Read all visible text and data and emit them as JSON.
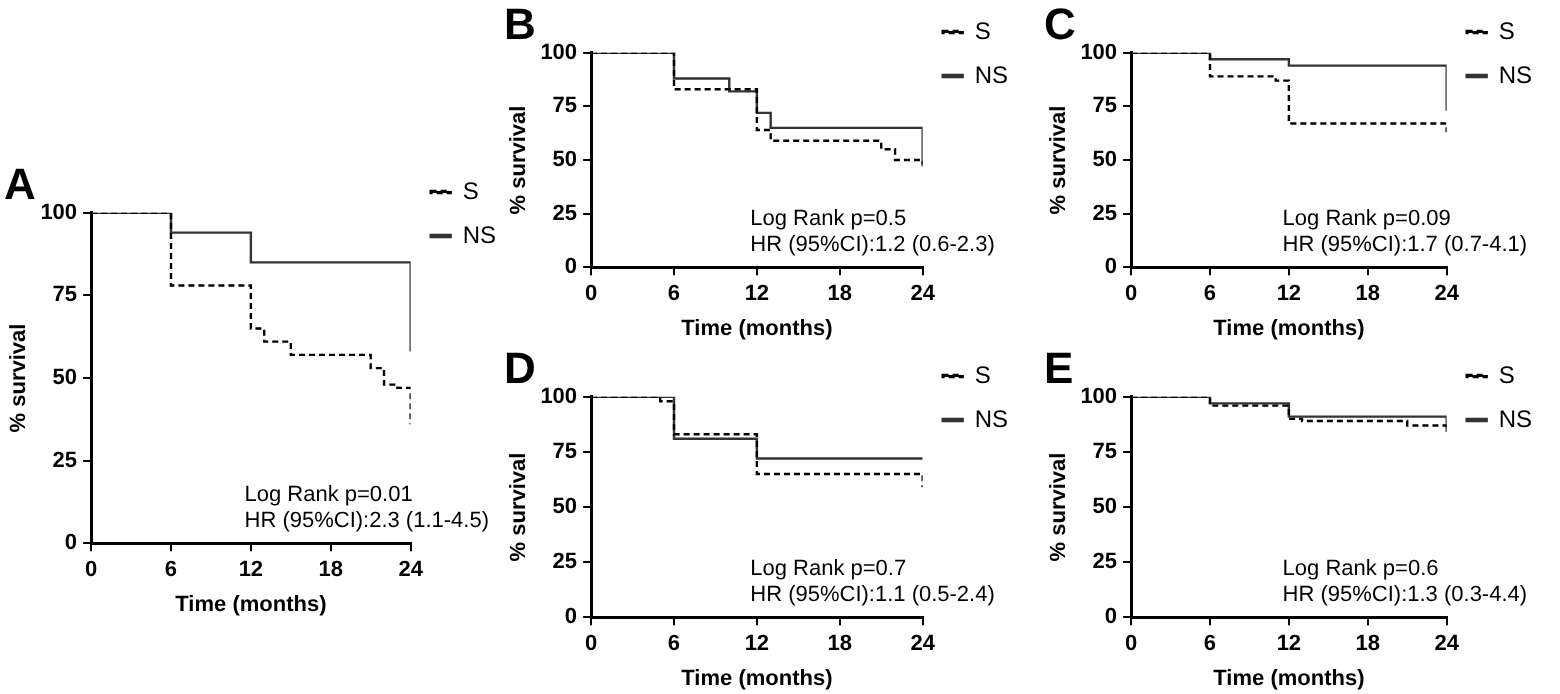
{
  "chart_data": [
    {
      "type": "step",
      "title": "A",
      "xlabel": "Time (months)",
      "ylabel": "% survival",
      "xlim": [
        0,
        24
      ],
      "xticks": [
        0,
        6,
        12,
        18,
        24
      ],
      "ylim": [
        0,
        100
      ],
      "yticks": [
        0,
        25,
        50,
        75,
        100
      ],
      "legend": "right",
      "annotations": [
        "Log Rank p=0.01",
        "HR (95%CI):2.3 (1.1-4.5)"
      ],
      "series": [
        {
          "name": "S",
          "color": "#000000",
          "line_style": "dashed",
          "x": [
            0,
            6,
            12,
            13,
            15,
            21,
            22,
            23,
            24,
            24
          ],
          "values": [
            100,
            78,
            65,
            61,
            57,
            53,
            48,
            47,
            46,
            36
          ]
        },
        {
          "name": "NS",
          "color": "#333333",
          "line_style": "solid",
          "x": [
            0,
            6,
            12,
            24,
            24
          ],
          "values": [
            100,
            94,
            85,
            85,
            58
          ]
        }
      ]
    },
    {
      "type": "step",
      "title": "B",
      "xlabel": "Time (months)",
      "ylabel": "% survival",
      "xlim": [
        0,
        24
      ],
      "xticks": [
        0,
        6,
        12,
        18,
        24
      ],
      "ylim": [
        0,
        100
      ],
      "yticks": [
        0,
        25,
        50,
        75,
        100
      ],
      "legend": "right",
      "annotations": [
        "Log Rank p=0.5",
        "HR (95%CI):1.2 (0.6-2.3)"
      ],
      "series": [
        {
          "name": "S",
          "color": "#000000",
          "line_style": "dashed",
          "x": [
            0,
            6,
            12,
            13,
            21,
            22,
            24,
            24
          ],
          "values": [
            100,
            83,
            64,
            59,
            55,
            50,
            50,
            48
          ]
        },
        {
          "name": "NS",
          "color": "#333333",
          "line_style": "solid",
          "x": [
            0,
            6,
            10,
            12,
            13,
            24,
            24
          ],
          "values": [
            100,
            88,
            82,
            72,
            65,
            65,
            47
          ]
        }
      ]
    },
    {
      "type": "step",
      "title": "C",
      "xlabel": "Time (months)",
      "ylabel": "% survival",
      "xlim": [
        0,
        24
      ],
      "xticks": [
        0,
        6,
        12,
        18,
        24
      ],
      "ylim": [
        0,
        100
      ],
      "yticks": [
        0,
        25,
        50,
        75,
        100
      ],
      "legend": "right",
      "annotations": [
        "Log Rank p=0.09",
        "HR (95%CI):1.7 (0.7-4.1)"
      ],
      "series": [
        {
          "name": "S",
          "color": "#000000",
          "line_style": "dashed",
          "x": [
            0,
            6,
            11,
            12,
            24,
            24
          ],
          "values": [
            100,
            89,
            87,
            67,
            67,
            63
          ]
        },
        {
          "name": "NS",
          "color": "#333333",
          "line_style": "solid",
          "x": [
            0,
            6,
            12,
            24,
            24
          ],
          "values": [
            100,
            97,
            94,
            94,
            73
          ]
        }
      ]
    },
    {
      "type": "step",
      "title": "D",
      "xlabel": "Time (months)",
      "ylabel": "% survival",
      "xlim": [
        0,
        24
      ],
      "xticks": [
        0,
        6,
        12,
        18,
        24
      ],
      "ylim": [
        0,
        100
      ],
      "yticks": [
        0,
        25,
        50,
        75,
        100
      ],
      "legend": "right",
      "annotations": [
        "Log Rank p=0.7",
        "HR (95%CI):1.1 (0.5-2.4)"
      ],
      "series": [
        {
          "name": "S",
          "color": "#000000",
          "line_style": "dashed",
          "x": [
            0,
            5,
            6,
            12,
            24,
            24
          ],
          "values": [
            100,
            98,
            83,
            65,
            65,
            59
          ]
        },
        {
          "name": "NS",
          "color": "#333333",
          "line_style": "solid",
          "x": [
            0,
            6,
            12,
            24
          ],
          "values": [
            100,
            81,
            72,
            72
          ]
        }
      ]
    },
    {
      "type": "step",
      "title": "E",
      "xlabel": "Time (months)",
      "ylabel": "% survival",
      "xlim": [
        0,
        24
      ],
      "xticks": [
        0,
        6,
        12,
        18,
        24
      ],
      "ylim": [
        0,
        100
      ],
      "yticks": [
        0,
        25,
        50,
        75,
        100
      ],
      "legend": "right",
      "annotations": [
        "Log Rank p=0.6",
        "HR (95%CI):1.3 (0.3-4.4)"
      ],
      "series": [
        {
          "name": "S",
          "color": "#000000",
          "line_style": "dashed",
          "x": [
            0,
            6,
            12,
            13,
            21,
            24,
            24
          ],
          "values": [
            100,
            96,
            90,
            89,
            87,
            87,
            85
          ]
        },
        {
          "name": "NS",
          "color": "#333333",
          "line_style": "solid",
          "x": [
            0,
            6,
            12,
            24,
            24
          ],
          "values": [
            100,
            97,
            91,
            91,
            84
          ]
        }
      ]
    }
  ]
}
